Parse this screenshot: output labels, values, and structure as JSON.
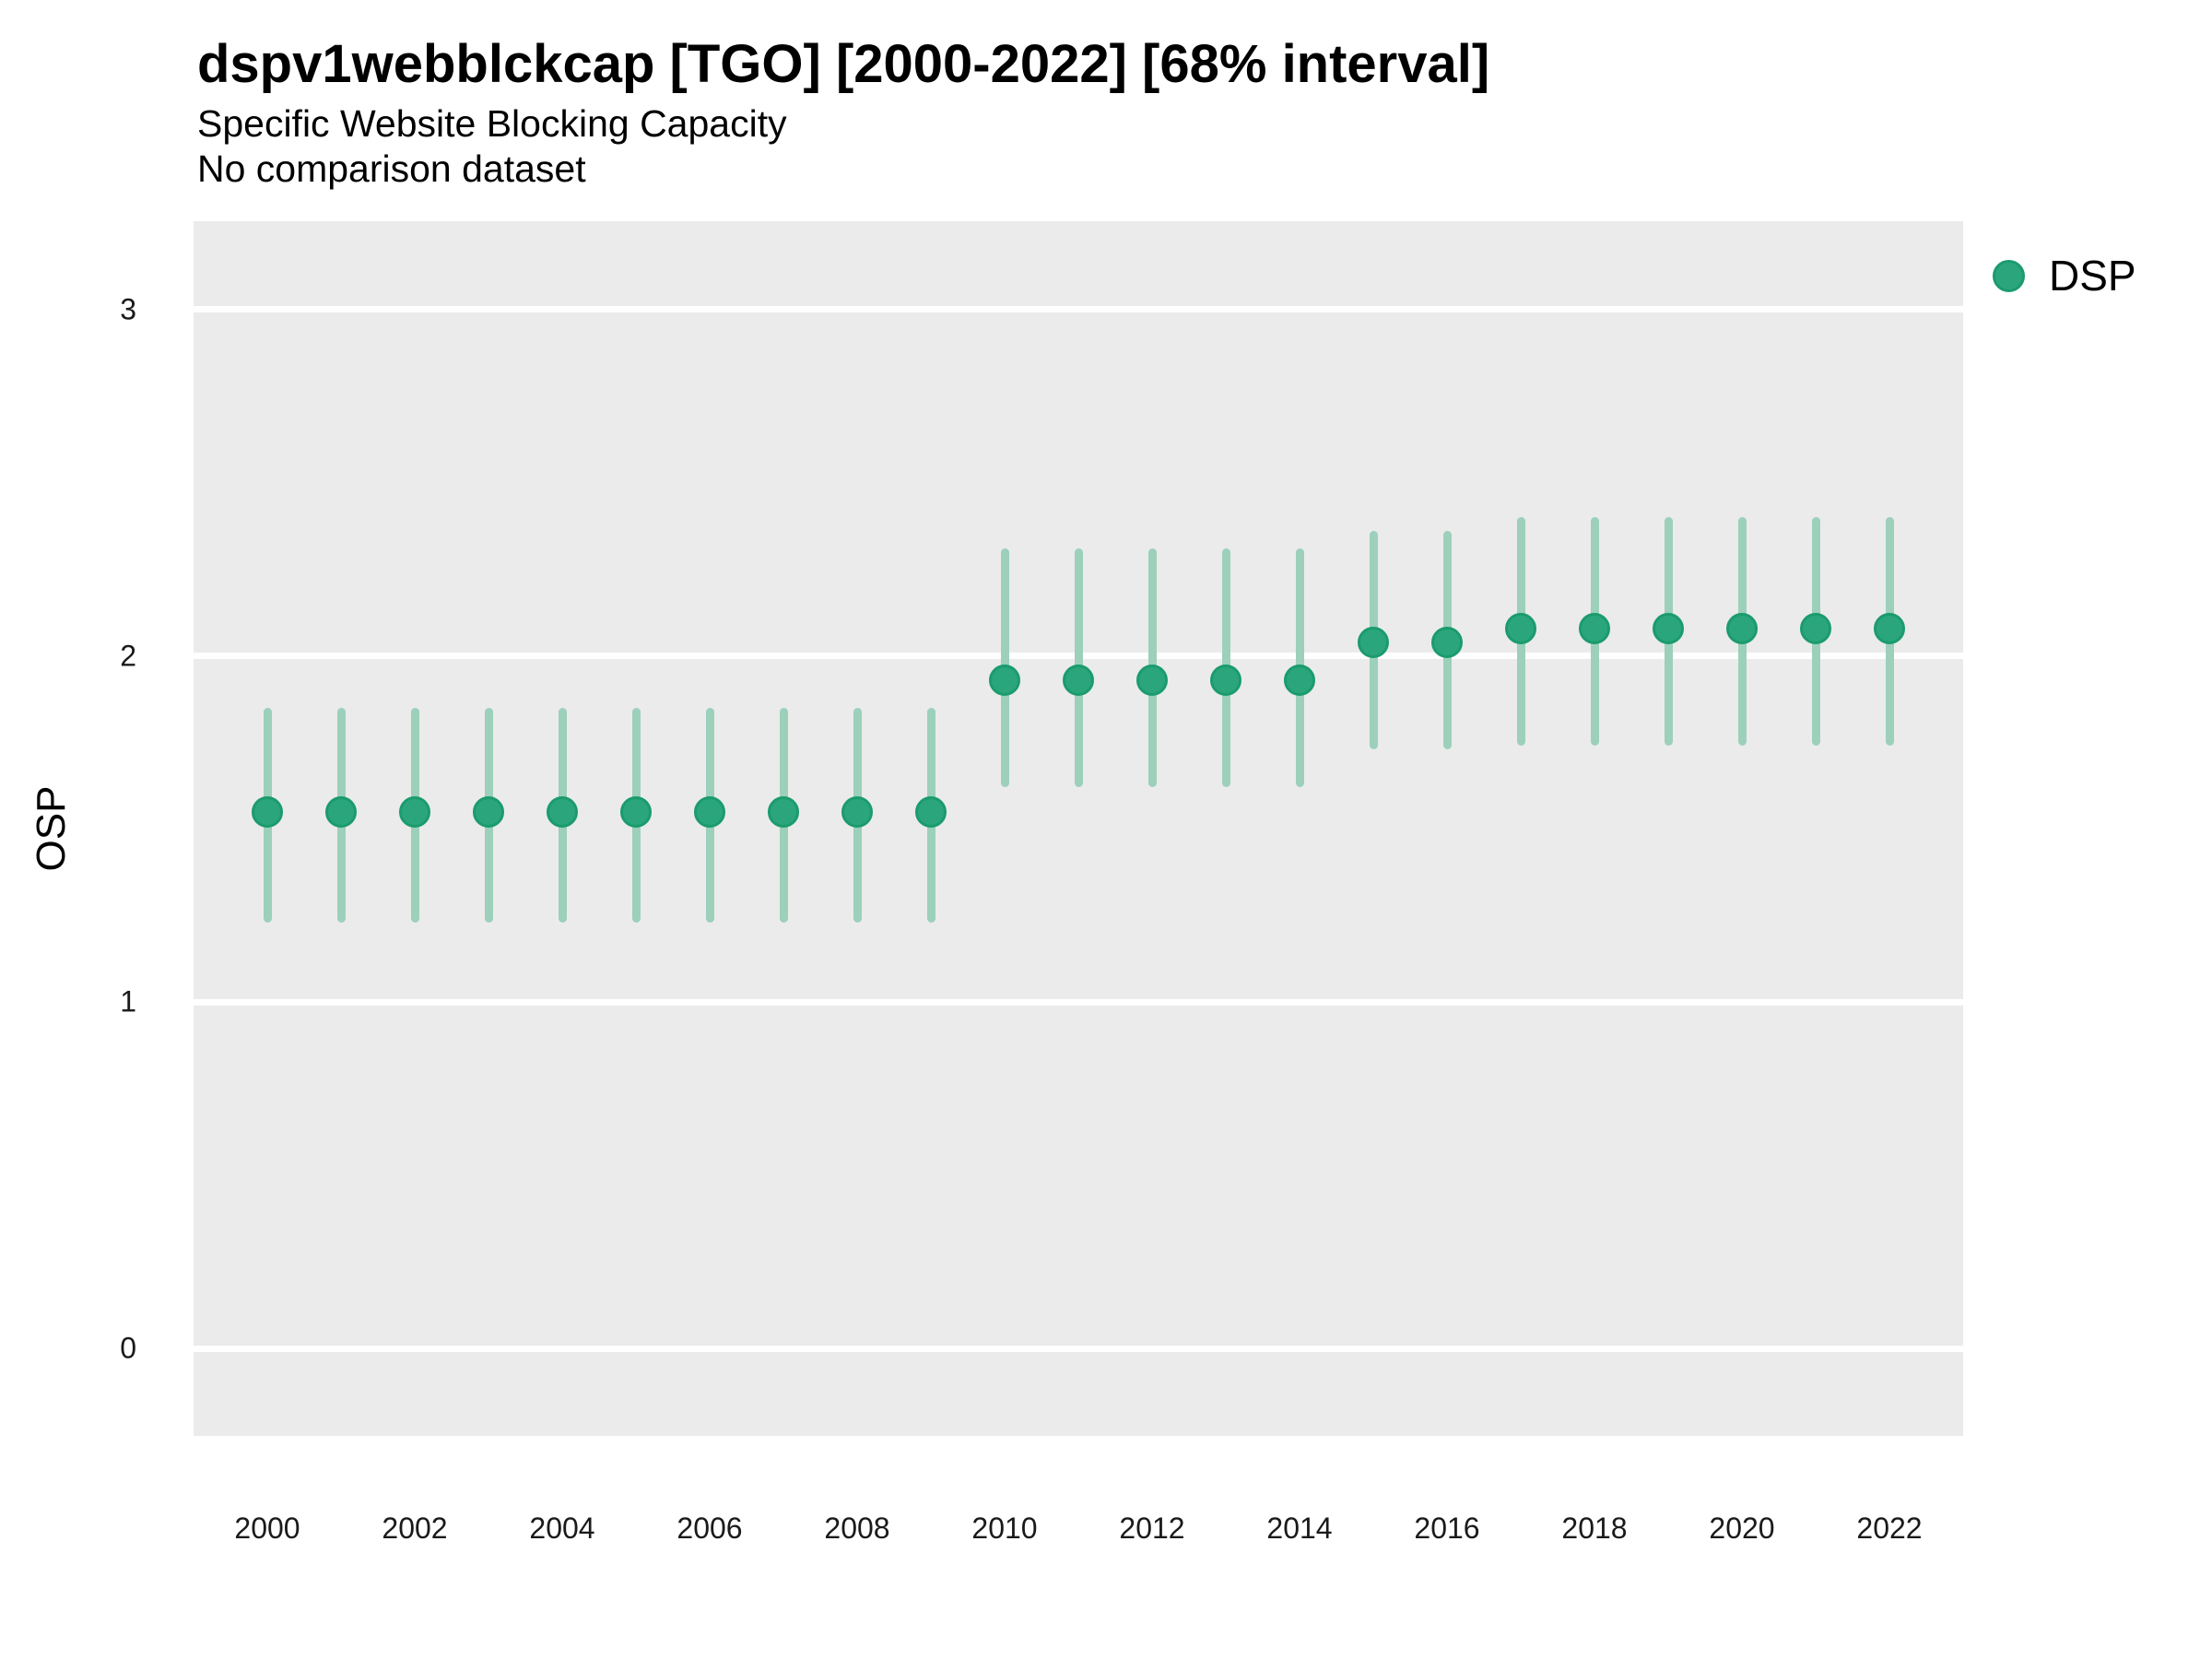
{
  "header": {
    "title": "dspv1webblckcap [TGO] [2000-2022] [68% interval]",
    "subtitle": "Specific Website Blocking Capacity",
    "note": "No comparison dataset"
  },
  "axes": {
    "y_label": "OSP",
    "y_ticks": [
      0,
      1,
      2,
      3
    ],
    "x_ticks": [
      2000,
      2002,
      2004,
      2006,
      2008,
      2010,
      2012,
      2014,
      2016,
      2018,
      2020,
      2022
    ]
  },
  "legend": {
    "items": [
      {
        "label": "DSP",
        "color": "#2BA67C"
      }
    ]
  },
  "colors": {
    "panel_background": "#EBEBEB",
    "gridline": "#FFFFFF",
    "point_fill": "#2BA67C",
    "point_border": "#1B9B6E",
    "interval_line": "#9CD0BB",
    "text": "#000000",
    "tick_text": "#1A1A1A"
  },
  "chart_data": {
    "type": "scatter",
    "title": "dspv1webblckcap [TGO] [2000-2022] [68% interval]",
    "subtitle": "Specific Website Blocking Capacity",
    "note": "No comparison dataset",
    "interval_level": "68%",
    "xlabel": "",
    "ylabel": "OSP",
    "ylim": [
      -0.25,
      3.25
    ],
    "xlim": [
      1999,
      2023
    ],
    "y_ticks": [
      0,
      1,
      2,
      3
    ],
    "x_ticks": [
      2000,
      2002,
      2004,
      2006,
      2008,
      2010,
      2012,
      2014,
      2016,
      2018,
      2020,
      2022
    ],
    "grid": "horizontal-major-only",
    "legend_position": "right-top",
    "series": [
      {
        "name": "DSP",
        "years": [
          2000,
          2001,
          2002,
          2003,
          2004,
          2005,
          2006,
          2007,
          2008,
          2009,
          2010,
          2011,
          2012,
          2013,
          2014,
          2015,
          2016,
          2017,
          2018,
          2019,
          2020,
          2021,
          2022
        ],
        "est": [
          1.55,
          1.55,
          1.55,
          1.55,
          1.55,
          1.55,
          1.55,
          1.55,
          1.55,
          1.55,
          1.93,
          1.93,
          1.93,
          1.93,
          1.93,
          2.04,
          2.04,
          2.08,
          2.08,
          2.08,
          2.08,
          2.08,
          2.08
        ],
        "lo": [
          1.23,
          1.23,
          1.23,
          1.23,
          1.23,
          1.23,
          1.23,
          1.23,
          1.23,
          1.23,
          1.62,
          1.62,
          1.62,
          1.62,
          1.62,
          1.73,
          1.73,
          1.74,
          1.74,
          1.74,
          1.74,
          1.74,
          1.74
        ],
        "hi": [
          1.85,
          1.85,
          1.85,
          1.85,
          1.85,
          1.85,
          1.85,
          1.85,
          1.85,
          1.85,
          2.31,
          2.31,
          2.31,
          2.31,
          2.31,
          2.36,
          2.36,
          2.4,
          2.4,
          2.4,
          2.4,
          2.4,
          2.4
        ]
      }
    ]
  }
}
